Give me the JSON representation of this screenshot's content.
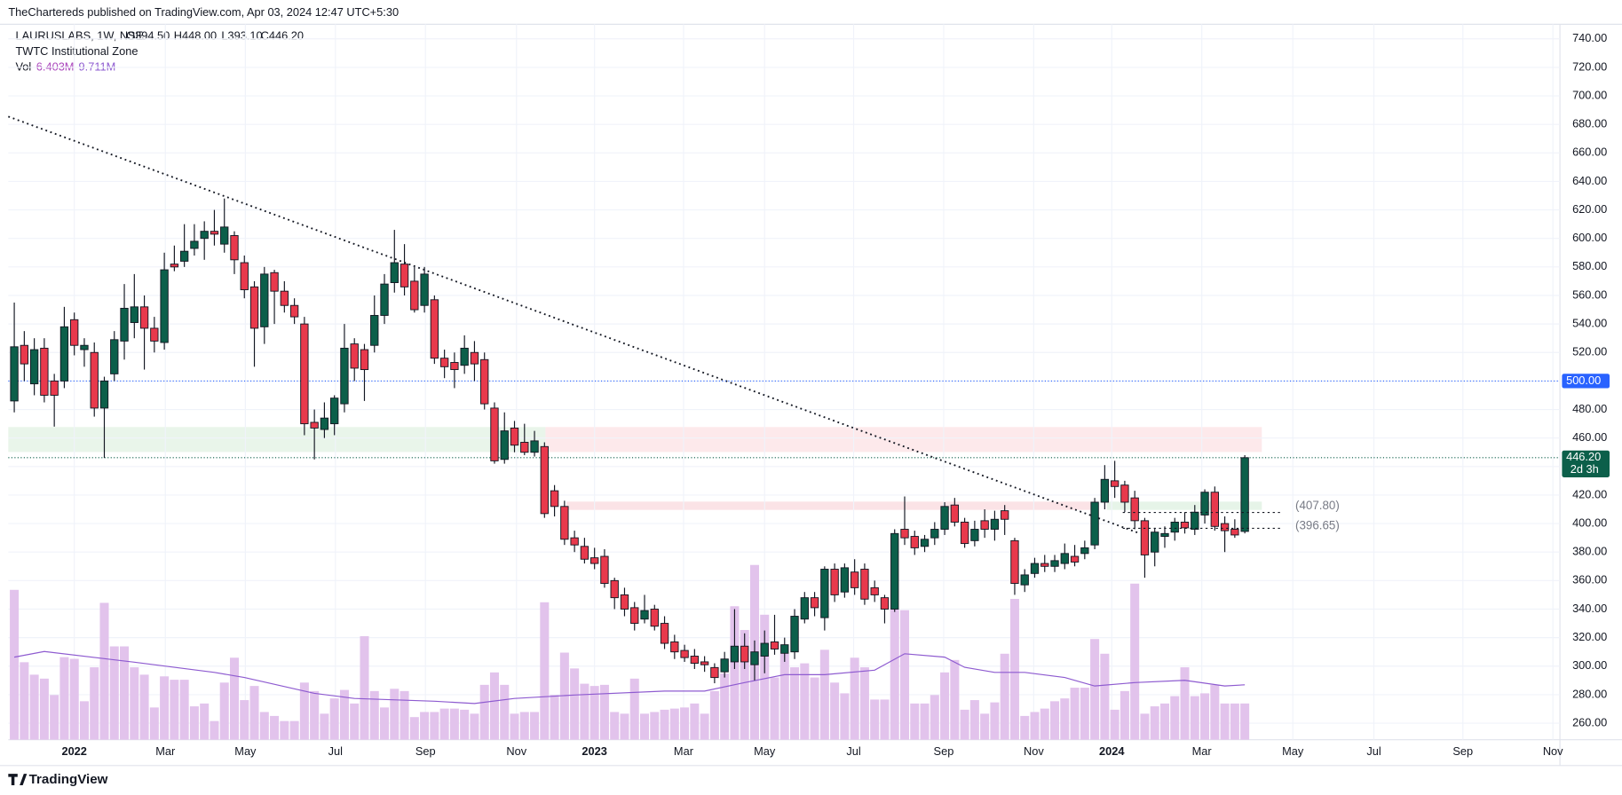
{
  "header": {
    "attribution": "TheChartereds published on TradingView.com, Apr 03, 2024 12:47 UTC+5:30",
    "symbol": "LAURUSLABS, 1W, NSE",
    "ohlc": [
      "O394.50",
      "H448.00",
      "L393.10",
      "C446.20"
    ],
    "indicator": "TWTC Institutional Zone",
    "vol_label": "Vol",
    "vol_values": [
      "6.403M",
      "9.711M"
    ]
  },
  "footer": {
    "brand": "TradingView"
  },
  "chart_data": {
    "type": "candlestick",
    "up_color": "#0c5f4a",
    "down_color": "#e8394c",
    "volume_color": "#e2c3ec",
    "ma_color": "#8e5bd0",
    "grid": true,
    "ylim": [
      248.4,
      750.2
    ],
    "yticks": [
      {
        "value": 260,
        "label": "260.00"
      },
      {
        "value": 280,
        "label": "280.00"
      },
      {
        "value": 300,
        "label": "300.00"
      },
      {
        "value": 320,
        "label": "320.00"
      },
      {
        "value": 340,
        "label": "340.00"
      },
      {
        "value": 360,
        "label": "360.00"
      },
      {
        "value": 380,
        "label": "380.00"
      },
      {
        "value": 400,
        "label": "400.00"
      },
      {
        "value": 420,
        "label": "420.00"
      },
      {
        "value": 440,
        "label": "440.00"
      },
      {
        "value": 460,
        "label": "460.00"
      },
      {
        "value": 480,
        "label": "480.00"
      },
      {
        "value": 500,
        "label": "500.00"
      },
      {
        "value": 520,
        "label": "520.00"
      },
      {
        "value": 540,
        "label": "540.00"
      },
      {
        "value": 560,
        "label": "560.00"
      },
      {
        "value": 580,
        "label": "580.00"
      },
      {
        "value": 600,
        "label": "600.00"
      },
      {
        "value": 620,
        "label": "620.00"
      },
      {
        "value": 640,
        "label": "640.00"
      },
      {
        "value": 660,
        "label": "660.00"
      },
      {
        "value": 680,
        "label": "680.00"
      },
      {
        "value": 700,
        "label": "700.00"
      },
      {
        "value": 720,
        "label": "720.00"
      },
      {
        "value": 740,
        "label": "740.00"
      }
    ],
    "xlim": [
      -0.6,
      154.5
    ],
    "xticks": [
      {
        "value": 6.0,
        "label": "2022"
      },
      {
        "value": 15.1,
        "label": "Mar"
      },
      {
        "value": 23.1,
        "label": "May"
      },
      {
        "value": 32.1,
        "label": "Jul"
      },
      {
        "value": 41.1,
        "label": "Sep"
      },
      {
        "value": 50.2,
        "label": "Nov"
      },
      {
        "value": 58.0,
        "label": "2023"
      },
      {
        "value": 66.9,
        "label": "Mar"
      },
      {
        "value": 75.0,
        "label": "May"
      },
      {
        "value": 83.9,
        "label": "Jul"
      },
      {
        "value": 92.9,
        "label": "Sep"
      },
      {
        "value": 101.9,
        "label": "Nov"
      },
      {
        "value": 109.7,
        "label": "2024"
      },
      {
        "value": 118.7,
        "label": "Mar"
      },
      {
        "value": 127.8,
        "label": "May"
      },
      {
        "value": 135.9,
        "label": "Jul"
      },
      {
        "value": 144.8,
        "label": "Sep"
      },
      {
        "value": 153.8,
        "label": "Nov"
      }
    ],
    "open": [
      486,
      525,
      498,
      523,
      500,
      500,
      543,
      522,
      520,
      481,
      505,
      528,
      541,
      552,
      537,
      527,
      582,
      584,
      593,
      600,
      605,
      596,
      602,
      583,
      566,
      538,
      576,
      563,
      553,
      540,
      471,
      466,
      470,
      484,
      526,
      522,
      525,
      546,
      569,
      582,
      570,
      553,
      557,
      516,
      513,
      511,
      520,
      515,
      481,
      445,
      467,
      457,
      450,
      454,
      423,
      412,
      390,
      384,
      376,
      377,
      360,
      350,
      341,
      333,
      340,
      330,
      317,
      311,
      307,
      303,
      299,
      296,
      303,
      314,
      301,
      307,
      317,
      309,
      310,
      333,
      348,
      334,
      368,
      352,
      366,
      368,
      355,
      348,
      340,
      396,
      391,
      384,
      390,
      396,
      413,
      401,
      388,
      402,
      396,
      409,
      388,
      357,
      365,
      372,
      370,
      372,
      377,
      379,
      385,
      415,
      430,
      427,
      418,
      402,
      380,
      391,
      394,
      401,
      396,
      406,
      422,
      400,
      396,
      394.5
    ],
    "high": [
      555,
      535,
      530,
      530,
      505,
      552,
      548,
      530,
      527,
      503,
      535,
      568,
      575,
      560,
      545,
      590,
      595,
      610,
      610,
      612,
      620,
      628,
      605,
      588,
      570,
      580,
      578,
      570,
      558,
      545,
      480,
      485,
      490,
      540,
      530,
      526,
      560,
      575,
      606,
      596,
      580,
      580,
      560,
      522,
      520,
      532,
      528,
      520,
      485,
      478,
      472,
      470,
      465,
      457,
      427,
      416,
      395,
      390,
      383,
      382,
      362,
      355,
      345,
      350,
      343,
      335,
      322,
      315,
      312,
      307,
      302,
      310,
      340,
      323,
      318,
      325,
      336,
      320,
      340,
      352,
      352,
      370,
      372,
      372,
      375,
      372,
      360,
      350,
      396,
      419,
      395,
      392,
      401,
      415,
      418,
      404,
      402,
      410,
      409,
      413,
      390,
      368,
      376,
      378,
      378,
      386,
      385,
      388,
      418,
      441,
      444,
      430,
      423,
      404,
      397,
      398,
      404,
      408,
      413,
      424,
      426,
      405,
      403,
      448
    ],
    "low": [
      478,
      500,
      490,
      485,
      468,
      495,
      518,
      510,
      475,
      446,
      500,
      515,
      530,
      508,
      520,
      522,
      577,
      580,
      588,
      585,
      595,
      590,
      575,
      558,
      510,
      526,
      540,
      548,
      540,
      462,
      445,
      460,
      462,
      478,
      500,
      486,
      520,
      540,
      562,
      560,
      548,
      548,
      512,
      502,
      495,
      505,
      500,
      480,
      442,
      442,
      450,
      448,
      447,
      404,
      405,
      385,
      380,
      372,
      368,
      355,
      340,
      335,
      325,
      330,
      325,
      312,
      305,
      303,
      298,
      296,
      288,
      292,
      298,
      298,
      290,
      295,
      308,
      303,
      305,
      330,
      335,
      325,
      345,
      348,
      350,
      343,
      345,
      330,
      338,
      385,
      378,
      380,
      385,
      392,
      398,
      383,
      384,
      390,
      388,
      392,
      350,
      352,
      362,
      366,
      366,
      368,
      370,
      375,
      382,
      410,
      418,
      408,
      396,
      362,
      370,
      383,
      388,
      393,
      392,
      400,
      395,
      380,
      390,
      393.1
    ],
    "close": [
      524,
      512,
      522,
      490,
      490,
      538,
      525,
      525,
      481,
      500,
      529,
      551,
      552,
      537,
      528,
      578,
      580,
      591,
      598,
      605,
      603,
      608,
      585,
      564,
      537,
      575,
      563,
      553,
      545,
      470,
      467,
      474,
      488,
      523,
      509,
      508,
      546,
      568,
      583,
      566,
      550,
      575,
      516,
      510,
      508,
      523,
      512,
      484,
      444,
      465,
      455,
      450,
      458,
      407,
      412,
      389,
      385,
      375,
      372,
      358,
      348,
      340,
      330,
      339,
      328,
      316,
      310,
      306,
      302,
      301,
      292,
      305,
      314,
      303,
      310,
      316,
      312,
      315,
      335,
      348,
      341,
      368,
      350,
      369,
      355,
      347,
      350,
      340,
      393,
      390,
      383,
      389,
      396,
      412,
      401,
      386,
      396,
      396,
      403,
      403,
      358,
      364,
      372,
      370,
      374,
      379,
      373,
      383,
      415,
      431,
      426,
      415,
      402,
      378,
      394,
      393,
      401,
      397,
      408,
      422,
      398,
      395,
      392,
      446.2
    ],
    "volume": [
      26.5,
      13.7,
      11.5,
      10.8,
      7.9,
      14.6,
      14.3,
      6.8,
      12.8,
      24.2,
      16.5,
      16.5,
      12.8,
      11.5,
      5.7,
      11.2,
      10.6,
      10.6,
      5.9,
      6.4,
      3.3,
      10.1,
      14.5,
      7.0,
      9.5,
      4.9,
      4.2,
      3.3,
      3.3,
      10.1,
      8.6,
      4.6,
      7.3,
      8.8,
      6.4,
      18.3,
      8.6,
      5.7,
      9.0,
      8.6,
      4.0,
      4.9,
      4.9,
      5.5,
      5.5,
      5.3,
      4.6,
      9.7,
      11.9,
      9.7,
      4.6,
      4.9,
      4.9,
      24.3,
      7.9,
      15.4,
      12.6,
      9.9,
      9.5,
      9.7,
      4.9,
      4.6,
      10.8,
      4.6,
      4.9,
      5.3,
      5.5,
      5.7,
      6.4,
      4.6,
      8.6,
      11.7,
      23.6,
      19.4,
      30.9,
      22.1,
      11.0,
      15.2,
      12.8,
      13.5,
      11.0,
      15.9,
      10.1,
      8.2,
      14.5,
      12.8,
      7.1,
      7.1,
      23.1,
      22.9,
      6.4,
      6.4,
      7.9,
      11.9,
      14.1,
      5.3,
      7.0,
      4.6,
      6.6,
      15.2,
      24.9,
      4.2,
      4.9,
      5.5,
      6.8,
      7.3,
      9.2,
      9.2,
      17.8,
      15.2,
      5.3,
      8.6,
      27.6,
      4.6,
      5.9,
      6.4,
      7.7,
      12.8,
      7.7,
      8.2,
      9.7,
      6.4,
      6.4,
      6.403
    ],
    "ma_x": [
      0,
      3,
      12,
      20,
      23,
      30,
      34,
      42,
      46,
      50,
      56,
      65,
      69,
      73,
      77,
      81,
      86,
      89,
      93,
      95,
      98,
      101,
      105,
      108,
      112,
      117,
      121,
      123
    ],
    "ma_values": [
      14.6,
      15.6,
      13.7,
      11.9,
      11.0,
      8.2,
      7.3,
      6.8,
      6.4,
      7.3,
      7.9,
      8.6,
      8.6,
      10.1,
      11.5,
      11.5,
      12.3,
      15.2,
      14.6,
      12.8,
      11.9,
      11.9,
      11.0,
      9.5,
      10.1,
      10.5,
      9.5,
      9.711
    ],
    "trendline": {
      "x": [
        -0.6,
        112.3
      ],
      "values": [
        685.5,
        393.6
      ]
    },
    "zones": [
      {
        "x": [
          -0.6,
          53.1
        ],
        "values": [
          450.2,
          467.7
        ],
        "color": "#e9f5ea"
      },
      {
        "x": [
          53.1,
          124.7
        ],
        "values": [
          450.2,
          467.7
        ],
        "color": "#fde9eb"
      },
      {
        "x": [
          55.2,
          108.2
        ],
        "values": [
          409.6,
          415.4
        ],
        "color": "#fbe3e6"
      },
      {
        "x": [
          109.2,
          124.7
        ],
        "values": [
          409.6,
          415.4
        ],
        "color": "#e6f4e8"
      }
    ],
    "levels": [
      {
        "x": [
          110.8,
          126.6
        ],
        "value": 407.8,
        "label": "(407.80)"
      },
      {
        "x": [
          110.8,
          126.6
        ],
        "value": 396.65,
        "label": "(396.65)"
      }
    ],
    "price_lines": [
      {
        "value": 500,
        "label": "500.00",
        "color": "#2962ff"
      },
      {
        "value": 446.2,
        "label": "446.20",
        "sub": "2d 3h",
        "color": "#0c5f4a"
      }
    ]
  }
}
